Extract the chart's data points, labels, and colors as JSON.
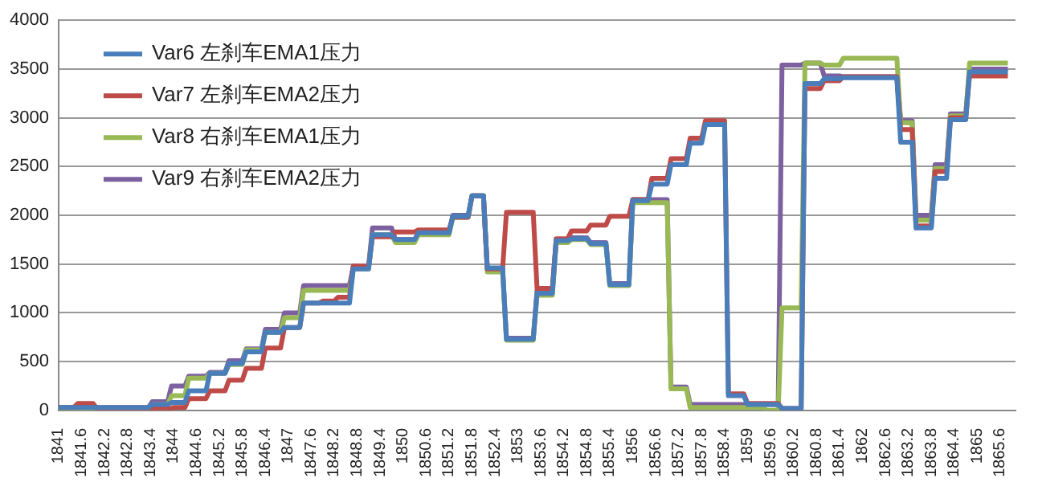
{
  "chart_data": {
    "type": "line",
    "xlim": [
      1841,
      1866
    ],
    "xticks": [
      1841,
      1841.6,
      1842.2,
      1842.8,
      1843.4,
      1844,
      1844.6,
      1845.2,
      1845.8,
      1846.4,
      1847,
      1847.6,
      1848.2,
      1848.8,
      1849.4,
      1850,
      1850.6,
      1851.2,
      1851.8,
      1852.4,
      1853,
      1853.6,
      1854.2,
      1854.8,
      1855.4,
      1856,
      1856.6,
      1857.2,
      1857.8,
      1858.4,
      1859,
      1859.6,
      1860.2,
      1860.8,
      1861.4,
      1862,
      1862.6,
      1863.2,
      1863.8,
      1864.4,
      1865,
      1865.6
    ],
    "ylim": [
      0,
      4000
    ],
    "yticks": [
      0,
      500,
      1000,
      1500,
      2000,
      2500,
      3000,
      3500,
      4000
    ],
    "grid": "y",
    "legend": "top left",
    "marker": "none",
    "line_style": "solid",
    "series": [
      {
        "name": "Var6 左刹车EMA1压力",
        "color": "#4a7ebb",
        "x": [
          1841,
          1843.35,
          1843.45,
          1843.85,
          1843.95,
          1844.3,
          1844.4,
          1844.85,
          1844.95,
          1845.35,
          1845.45,
          1845.8,
          1845.9,
          1846.3,
          1846.4,
          1846.8,
          1846.9,
          1847.3,
          1847.4,
          1848.6,
          1848.7,
          1849.1,
          1849.2,
          1849.7,
          1849.8,
          1850.3,
          1850.4,
          1851.2,
          1851.3,
          1851.7,
          1851.8,
          1852.1,
          1852.2,
          1852.6,
          1852.7,
          1853.4,
          1853.5,
          1853.9,
          1854,
          1854.3,
          1854.4,
          1854.8,
          1854.9,
          1855.3,
          1855.4,
          1855.9,
          1856,
          1856.4,
          1856.5,
          1856.9,
          1857,
          1857.4,
          1857.5,
          1857.8,
          1857.9,
          1858.4,
          1858.5,
          1858.9,
          1859,
          1859.8,
          1859.9,
          1860.4,
          1860.5,
          1860.9,
          1861,
          1861.4,
          1861.5,
          1862.9,
          1863,
          1863.3,
          1863.4,
          1863.8,
          1863.9,
          1864.2,
          1864.3,
          1864.7,
          1864.8,
          1865.8
        ],
        "values": [
          30,
          30,
          60,
          60,
          80,
          80,
          200,
          200,
          380,
          380,
          480,
          480,
          600,
          600,
          800,
          800,
          850,
          850,
          1100,
          1100,
          1450,
          1450,
          1800,
          1800,
          1750,
          1750,
          1820,
          1820,
          1990,
          1990,
          2200,
          2200,
          1460,
          1460,
          730,
          730,
          1200,
          1200,
          1740,
          1740,
          1760,
          1760,
          1710,
          1710,
          1290,
          1290,
          2150,
          2150,
          2320,
          2320,
          2520,
          2520,
          2740,
          2740,
          2930,
          2930,
          150,
          150,
          60,
          60,
          20,
          20,
          3350,
          3350,
          3400,
          3400,
          3410,
          3410,
          2750,
          2750,
          1870,
          1870,
          2380,
          2380,
          2980,
          2980,
          3470,
          3470
        ]
      },
      {
        "name": "Var7 左刹车EMA2压力",
        "color": "#be4b48",
        "x": [
          1841,
          1841.4,
          1841.5,
          1841.9,
          1842,
          1843.95,
          1844,
          1844.3,
          1844.4,
          1844.85,
          1844.95,
          1845.35,
          1845.45,
          1845.8,
          1845.9,
          1846.3,
          1846.4,
          1846.8,
          1846.9,
          1847.3,
          1847.4,
          1847.8,
          1847.9,
          1848.2,
          1848.3,
          1848.6,
          1848.7,
          1849.1,
          1849.2,
          1849.7,
          1849.8,
          1850.3,
          1850.4,
          1851.2,
          1851.3,
          1851.7,
          1851.8,
          1852.1,
          1852.2,
          1852.6,
          1852.7,
          1853.4,
          1853.5,
          1853.9,
          1854,
          1854.3,
          1854.4,
          1854.8,
          1854.9,
          1855.3,
          1855.4,
          1855.9,
          1856,
          1856.4,
          1856.5,
          1856.9,
          1857,
          1857.4,
          1857.5,
          1857.8,
          1857.9,
          1858.4,
          1858.5,
          1858.9,
          1859,
          1859.8,
          1859.9,
          1860.4,
          1860.5,
          1860.9,
          1861,
          1861.4,
          1861.5,
          1862.9,
          1863,
          1863.3,
          1863.4,
          1863.8,
          1863.9,
          1864.2,
          1864.3,
          1864.7,
          1864.8,
          1865.8
        ],
        "values": [
          30,
          30,
          70,
          70,
          20,
          20,
          30,
          30,
          120,
          120,
          200,
          200,
          310,
          310,
          430,
          430,
          640,
          640,
          850,
          850,
          1100,
          1100,
          1120,
          1120,
          1160,
          1160,
          1480,
          1480,
          1780,
          1780,
          1830,
          1830,
          1850,
          1850,
          1980,
          1980,
          2200,
          2200,
          1450,
          1450,
          2030,
          2030,
          1250,
          1250,
          1760,
          1760,
          1840,
          1840,
          1900,
          1900,
          1990,
          1990,
          2160,
          2160,
          2380,
          2380,
          2580,
          2580,
          2790,
          2790,
          2970,
          2970,
          170,
          170,
          70,
          70,
          20,
          20,
          3300,
          3300,
          3380,
          3380,
          3420,
          3420,
          2880,
          2880,
          1890,
          1890,
          2450,
          2450,
          3000,
          3000,
          3430,
          3430
        ]
      },
      {
        "name": "Var8 右刹车EMA1压力",
        "color": "#98b954",
        "x": [
          1841,
          1843.35,
          1843.45,
          1843.85,
          1843.95,
          1844.3,
          1844.4,
          1844.85,
          1844.95,
          1845.35,
          1845.45,
          1845.8,
          1845.9,
          1846.3,
          1846.4,
          1846.8,
          1846.9,
          1847.3,
          1847.4,
          1848.6,
          1848.7,
          1849.1,
          1849.2,
          1849.7,
          1849.8,
          1850.3,
          1850.4,
          1851.2,
          1851.3,
          1851.7,
          1851.8,
          1852.1,
          1852.2,
          1852.6,
          1852.7,
          1853.4,
          1853.5,
          1853.9,
          1854,
          1854.3,
          1854.4,
          1854.8,
          1854.9,
          1855.3,
          1855.4,
          1855.9,
          1856,
          1856.9,
          1857,
          1857.4,
          1857.5,
          1859.4,
          1859.5,
          1859.8,
          1859.9,
          1860.4,
          1860.5,
          1860.9,
          1861,
          1861.4,
          1861.5,
          1862.9,
          1863,
          1863.3,
          1863.4,
          1863.8,
          1863.9,
          1864.2,
          1864.3,
          1864.7,
          1864.8,
          1865.8
        ],
        "values": [
          20,
          20,
          60,
          60,
          150,
          150,
          330,
          330,
          380,
          380,
          470,
          470,
          620,
          620,
          800,
          800,
          950,
          950,
          1230,
          1230,
          1450,
          1450,
          1800,
          1800,
          1720,
          1720,
          1800,
          1800,
          1980,
          1980,
          2200,
          2200,
          1420,
          1420,
          720,
          720,
          1180,
          1180,
          1720,
          1720,
          1750,
          1750,
          1700,
          1700,
          1280,
          1280,
          2130,
          2130,
          220,
          220,
          30,
          30,
          0,
          0,
          1050,
          1050,
          3560,
          3560,
          3540,
          3540,
          3610,
          3610,
          2950,
          2950,
          1950,
          1950,
          2480,
          2480,
          3020,
          3020,
          3560,
          3560
        ]
      },
      {
        "name": "Var9 右刹车EMA2压力",
        "color": "#7d60a0",
        "x": [
          1841,
          1843.35,
          1843.45,
          1843.85,
          1843.95,
          1844.3,
          1844.4,
          1844.85,
          1844.95,
          1845.35,
          1845.45,
          1845.8,
          1845.9,
          1846.3,
          1846.4,
          1846.8,
          1846.9,
          1847.3,
          1847.4,
          1848.6,
          1848.7,
          1849.1,
          1849.2,
          1849.7,
          1849.8,
          1850.3,
          1850.4,
          1851.2,
          1851.3,
          1851.7,
          1851.8,
          1852.1,
          1852.2,
          1852.6,
          1852.7,
          1853.4,
          1853.5,
          1853.9,
          1854,
          1854.3,
          1854.4,
          1854.8,
          1854.9,
          1855.3,
          1855.4,
          1855.9,
          1856,
          1856.9,
          1857,
          1857.4,
          1857.5,
          1859.8,
          1859.9,
          1860.4,
          1860.5,
          1860.9,
          1861,
          1861.4,
          1861.5,
          1862.9,
          1863,
          1863.3,
          1863.4,
          1863.8,
          1863.9,
          1864.2,
          1864.3,
          1864.7,
          1864.8,
          1865.8
        ],
        "values": [
          30,
          30,
          90,
          90,
          250,
          250,
          350,
          350,
          390,
          390,
          510,
          510,
          630,
          630,
          830,
          830,
          1000,
          1000,
          1280,
          1280,
          1480,
          1480,
          1870,
          1870,
          1750,
          1750,
          1820,
          1820,
          2000,
          2000,
          2200,
          2200,
          1450,
          1450,
          740,
          740,
          1230,
          1230,
          1750,
          1750,
          1770,
          1770,
          1720,
          1720,
          1300,
          1300,
          2160,
          2160,
          240,
          240,
          60,
          60,
          3540,
          3540,
          3560,
          3560,
          3430,
          3430,
          3420,
          3420,
          2970,
          2970,
          2000,
          2000,
          2520,
          2520,
          3040,
          3040,
          3500,
          3500
        ]
      }
    ]
  }
}
